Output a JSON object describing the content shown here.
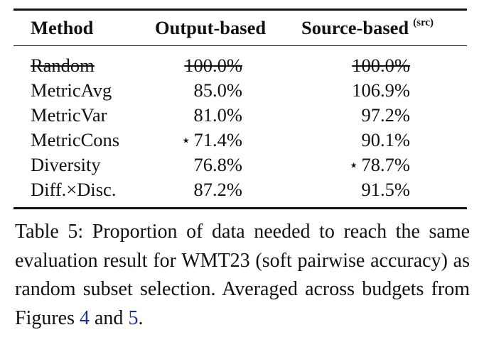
{
  "table": {
    "headers": {
      "method": "Method",
      "output": "Output-based",
      "source": "Source-based",
      "source_sup": "(src)"
    },
    "rows": [
      {
        "method": "Random",
        "output": "100.0%",
        "source": "100.0%",
        "struck": true,
        "output_star": false,
        "source_star": false
      },
      {
        "method": "MetricAvg",
        "output": "85.0%",
        "source": "106.9%",
        "struck": false,
        "output_star": false,
        "source_star": false
      },
      {
        "method": "MetricVar",
        "output": "81.0%",
        "source": "97.2%",
        "struck": false,
        "output_star": false,
        "source_star": false
      },
      {
        "method": "MetricCons",
        "output": "71.4%",
        "source": "90.1%",
        "struck": false,
        "output_star": true,
        "source_star": false
      },
      {
        "method": "Diversity",
        "output": "76.8%",
        "source": "78.7%",
        "struck": false,
        "output_star": false,
        "source_star": true
      },
      {
        "method": "Diff.×Disc.",
        "output": "87.2%",
        "source": "91.5%",
        "struck": false,
        "output_star": false,
        "source_star": false
      }
    ],
    "star_glyph": "⋆"
  },
  "caption": {
    "label": "Table 5:",
    "text": "Proportion of data needed to reach the same evaluation result for WMT23 (soft pairwise accuracy) as random subset selection.  Averaged across budgets from Figures",
    "ref1": "4",
    "and": "and",
    "ref2": "5",
    "end": "."
  },
  "colors": {
    "text": "#111111",
    "link": "#1f2f8f"
  }
}
